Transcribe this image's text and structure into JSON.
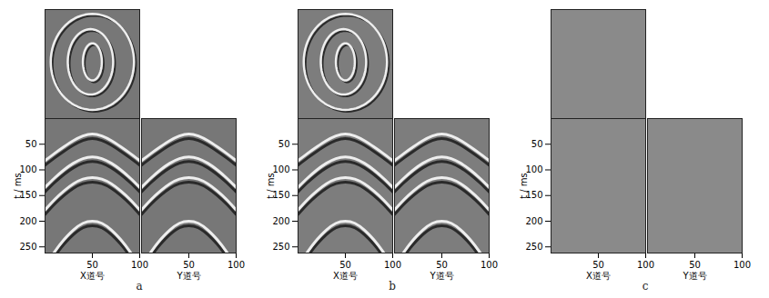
{
  "chart_data": [
    {
      "type": "seismic",
      "title": "a",
      "color": "#777777",
      "event_color": "#eeeeee",
      "slice": {
        "xlim": [
          0,
          100
        ],
        "ylim": [
          0,
          100
        ],
        "tick_labels": false,
        "ellipses": [
          {
            "cx": 50,
            "cy": 52,
            "rx": 44,
            "ry": 44
          },
          {
            "cx": 48,
            "cy": 52,
            "rx": 24,
            "ry": 30
          },
          {
            "cx": 50,
            "cy": 52,
            "rx": 10,
            "ry": 17
          }
        ]
      },
      "sections": [
        {
          "xlabel": "X道号",
          "ylabel": "t / ms",
          "xlim": [
            0,
            100
          ],
          "xticks": [
            50,
            100
          ],
          "ylim": [
            0,
            262
          ],
          "yticks": [
            50,
            100,
            150,
            200,
            250
          ],
          "x": [
            0,
            10,
            20,
            30,
            40,
            50,
            60,
            70,
            80,
            90,
            100
          ],
          "series": [
            {
              "values": [
                82,
                68,
                55,
                43,
                34,
                30,
                34,
                43,
                55,
                68,
                82
              ]
            },
            {
              "values": [
                134,
                116,
                100,
                87,
                78,
                75,
                78,
                87,
                100,
                116,
                134
              ]
            },
            {
              "values": [
                178,
                158,
                141,
                127,
                118,
                115,
                118,
                127,
                141,
                158,
                178
              ]
            },
            {
              "values": [
                288,
                260,
                236,
                217,
                204,
                200,
                204,
                217,
                236,
                260,
                288
              ]
            }
          ]
        },
        {
          "xlabel": "Y道号",
          "tick_labels": "x",
          "xlim": [
            0,
            100
          ],
          "xticks": [
            50,
            100
          ],
          "ylim": [
            0,
            262
          ],
          "yticks": [
            50,
            100,
            150,
            200,
            250
          ],
          "x": [
            0,
            10,
            20,
            30,
            40,
            50,
            60,
            70,
            80,
            90,
            100
          ],
          "series": [
            {
              "values": [
                82,
                68,
                55,
                43,
                34,
                30,
                34,
                43,
                55,
                68,
                82
              ]
            },
            {
              "values": [
                134,
                116,
                100,
                87,
                78,
                75,
                78,
                87,
                100,
                116,
                134
              ]
            },
            {
              "values": [
                178,
                158,
                141,
                127,
                118,
                115,
                118,
                127,
                141,
                158,
                178
              ]
            },
            {
              "values": [
                288,
                260,
                236,
                217,
                204,
                200,
                204,
                217,
                236,
                260,
                288
              ]
            }
          ]
        }
      ]
    },
    {
      "type": "seismic",
      "title": "b",
      "color": "#7d7d7d",
      "event_color": "#eeeeee",
      "slice": {
        "xlim": [
          0,
          100
        ],
        "ylim": [
          0,
          100
        ],
        "tick_labels": false,
        "ellipses": [
          {
            "cx": 50,
            "cy": 52,
            "rx": 44,
            "ry": 44
          },
          {
            "cx": 48,
            "cy": 52,
            "rx": 24,
            "ry": 30
          },
          {
            "cx": 50,
            "cy": 52,
            "rx": 10,
            "ry": 17
          }
        ]
      },
      "sections": [
        {
          "xlabel": "X道号",
          "ylabel": "t / ms",
          "xlim": [
            0,
            100
          ],
          "xticks": [
            50,
            100
          ],
          "ylim": [
            0,
            262
          ],
          "yticks": [
            50,
            100,
            150,
            200,
            250
          ],
          "x": [
            0,
            10,
            20,
            30,
            40,
            50,
            60,
            70,
            80,
            90,
            100
          ],
          "series": [
            {
              "values": [
                82,
                68,
                55,
                43,
                34,
                30,
                34,
                43,
                55,
                68,
                82
              ]
            },
            {
              "values": [
                134,
                116,
                100,
                87,
                78,
                75,
                78,
                87,
                100,
                116,
                134
              ]
            },
            {
              "values": [
                178,
                158,
                141,
                127,
                118,
                115,
                118,
                127,
                141,
                158,
                178
              ]
            },
            {
              "values": [
                288,
                260,
                236,
                217,
                204,
                200,
                204,
                217,
                236,
                260,
                288
              ]
            }
          ]
        },
        {
          "xlabel": "Y道号",
          "tick_labels": "x",
          "xlim": [
            0,
            100
          ],
          "xticks": [
            50,
            100
          ],
          "ylim": [
            0,
            262
          ],
          "yticks": [
            50,
            100,
            150,
            200,
            250
          ],
          "x": [
            0,
            10,
            20,
            30,
            40,
            50,
            60,
            70,
            80,
            90,
            100
          ],
          "series": [
            {
              "values": [
                82,
                68,
                55,
                43,
                34,
                30,
                34,
                43,
                55,
                68,
                82
              ]
            },
            {
              "values": [
                134,
                116,
                100,
                87,
                78,
                75,
                78,
                87,
                100,
                116,
                134
              ]
            },
            {
              "values": [
                178,
                158,
                141,
                127,
                118,
                115,
                118,
                127,
                141,
                158,
                178
              ]
            },
            {
              "values": [
                288,
                260,
                236,
                217,
                204,
                200,
                204,
                217,
                236,
                260,
                288
              ]
            }
          ]
        }
      ]
    },
    {
      "type": "seismic",
      "title": "c",
      "color": "#8a8a8a",
      "event_color": "#eeeeee",
      "slice": {
        "xlim": [
          0,
          100
        ],
        "ylim": [
          0,
          100
        ],
        "tick_labels": false,
        "ellipses": []
      },
      "sections": [
        {
          "xlabel": "X道号",
          "ylabel": "t / ms",
          "xlim": [
            0,
            100
          ],
          "xticks": [
            50,
            100
          ],
          "ylim": [
            0,
            262
          ],
          "yticks": [
            50,
            100,
            150,
            200,
            250
          ],
          "x": [],
          "series": []
        },
        {
          "xlabel": "Y道号",
          "tick_labels": "x",
          "xlim": [
            0,
            100
          ],
          "xticks": [
            50,
            100
          ],
          "ylim": [
            0,
            262
          ],
          "yticks": [
            50,
            100,
            150,
            200,
            250
          ],
          "x": [],
          "series": []
        }
      ]
    }
  ]
}
